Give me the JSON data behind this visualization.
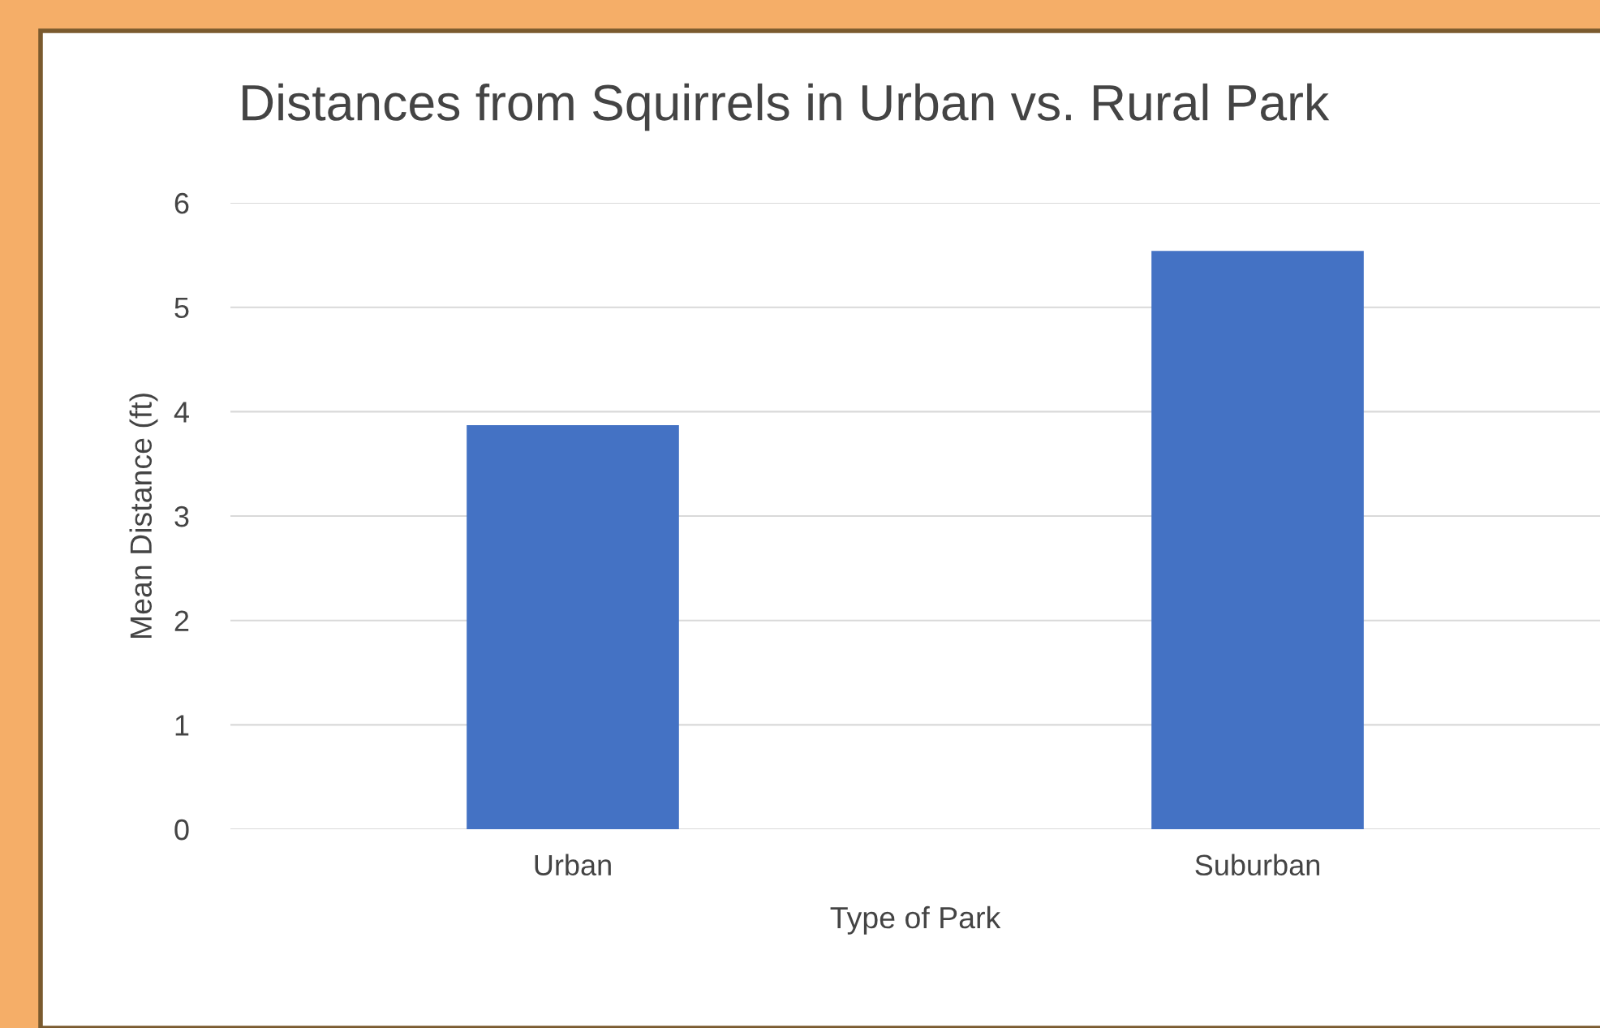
{
  "chart_data": {
    "type": "bar",
    "title": "Distances from Squirrels in Urban vs. Rural Park",
    "xlabel": "Type of Park",
    "ylabel": "Mean Distance (ft)",
    "categories": [
      "Urban",
      "Suburban"
    ],
    "values": [
      3.87,
      5.54
    ],
    "color": "#4472c4",
    "ylim": [
      0,
      6
    ],
    "yticks": [
      0,
      1,
      2,
      3,
      4,
      5,
      6
    ],
    "grid": "y",
    "legend": false
  }
}
